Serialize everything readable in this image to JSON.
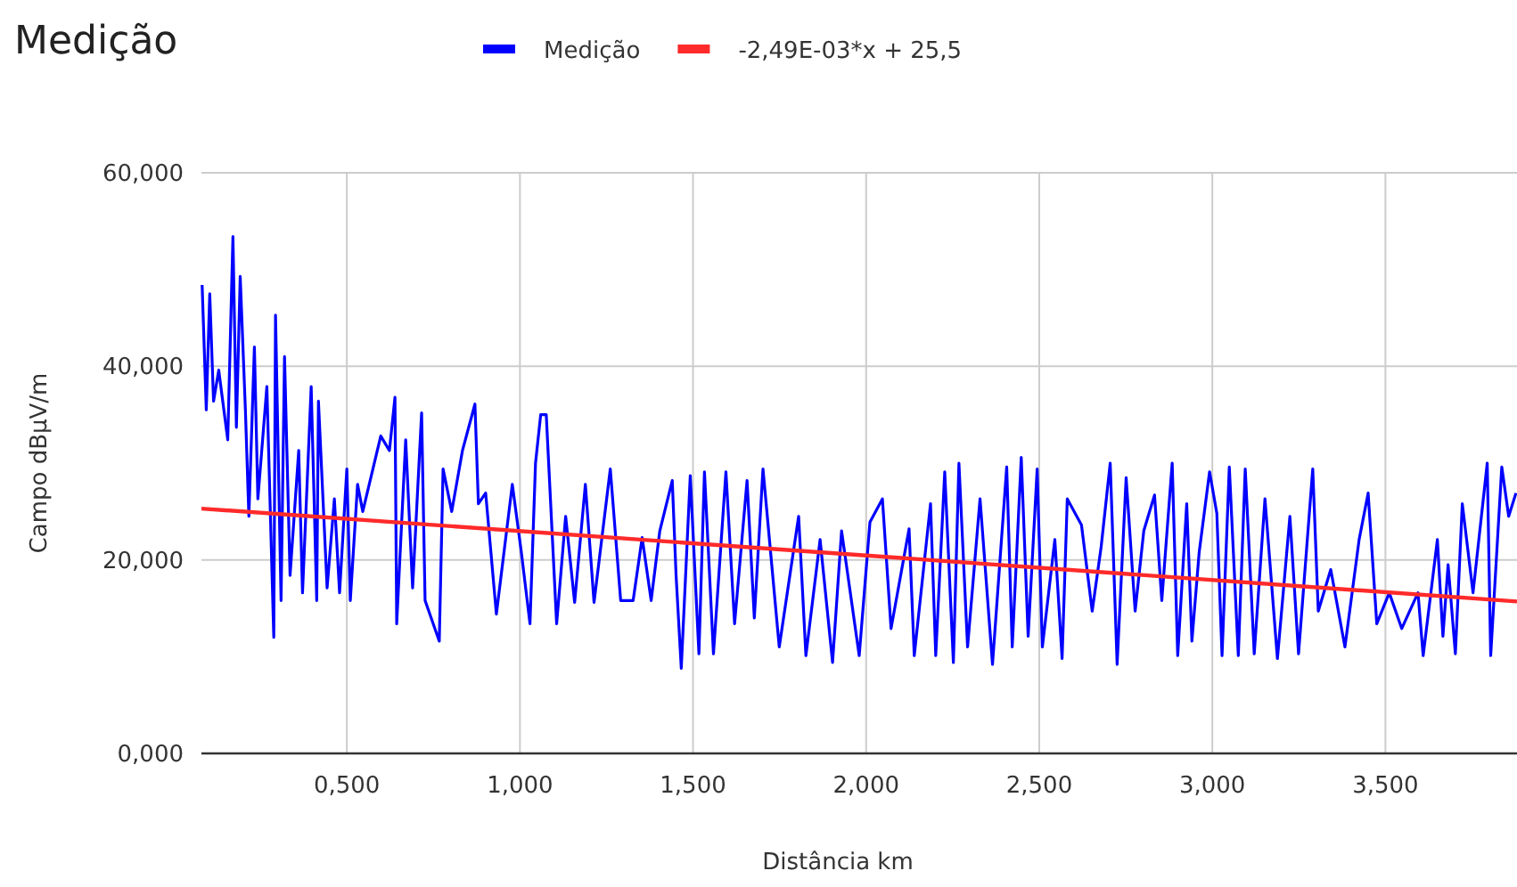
{
  "chart_data": {
    "type": "line",
    "title": "Medição",
    "xlabel": "Distância km",
    "ylabel": "Campo dBµV/m",
    "legend": "top",
    "grid": true,
    "marker": "none",
    "line_style": "solid",
    "xlim": [
      0.08,
      3.88
    ],
    "xticks": [
      {
        "value": 0.5,
        "label": "0,500"
      },
      {
        "value": 1,
        "label": "1,000"
      },
      {
        "value": 1.5,
        "label": "1,500"
      },
      {
        "value": 2,
        "label": "2,000"
      },
      {
        "value": 2.5,
        "label": "2,500"
      },
      {
        "value": 3,
        "label": "3,000"
      },
      {
        "value": 3.5,
        "label": "3,500"
      }
    ],
    "ylim": [
      0,
      60
    ],
    "yticks": [
      {
        "value": 0,
        "label": "0,000"
      },
      {
        "value": 20,
        "label": "20,000"
      },
      {
        "value": 40,
        "label": "40,000"
      },
      {
        "value": 60,
        "label": "60,000"
      }
    ],
    "series": [
      {
        "name": "Medição",
        "color": "#0000ff",
        "x": [
          0.082,
          0.094,
          0.104,
          0.115,
          0.13,
          0.156,
          0.171,
          0.181,
          0.192,
          0.207,
          0.217,
          0.233,
          0.243,
          0.269,
          0.289,
          0.294,
          0.31,
          0.32,
          0.336,
          0.361,
          0.372,
          0.397,
          0.413,
          0.418,
          0.443,
          0.464,
          0.479,
          0.5,
          0.51,
          0.531,
          0.546,
          0.598,
          0.623,
          0.639,
          0.644,
          0.67,
          0.69,
          0.716,
          0.726,
          0.767,
          0.778,
          0.803,
          0.834,
          0.87,
          0.88,
          0.901,
          0.932,
          0.978,
          1.004,
          1.029,
          1.045,
          1.06,
          1.076,
          1.106,
          1.132,
          1.158,
          1.189,
          1.214,
          1.261,
          1.291,
          1.327,
          1.353,
          1.379,
          1.404,
          1.44,
          1.451,
          1.466,
          1.492,
          1.517,
          1.533,
          1.559,
          1.595,
          1.62,
          1.656,
          1.677,
          1.702,
          1.749,
          1.805,
          1.826,
          1.867,
          1.903,
          1.929,
          1.98,
          2.011,
          2.047,
          2.072,
          2.124,
          2.139,
          2.186,
          2.201,
          2.227,
          2.252,
          2.268,
          2.293,
          2.329,
          2.365,
          2.406,
          2.422,
          2.448,
          2.468,
          2.494,
          2.509,
          2.545,
          2.566,
          2.581,
          2.622,
          2.653,
          2.679,
          2.705,
          2.725,
          2.751,
          2.777,
          2.802,
          2.833,
          2.854,
          2.884,
          2.9,
          2.926,
          2.941,
          2.962,
          2.992,
          3.013,
          3.028,
          3.049,
          3.075,
          3.095,
          3.121,
          3.152,
          3.188,
          3.224,
          3.249,
          3.29,
          3.306,
          3.342,
          3.383,
          3.424,
          3.45,
          3.475,
          3.511,
          3.547,
          3.594,
          3.609,
          3.65,
          3.666,
          3.681,
          3.702,
          3.722,
          3.753,
          3.794,
          3.804,
          3.836,
          3.856,
          3.877
        ],
        "values": [
          48.4,
          35.5,
          47.5,
          36.4,
          39.6,
          32.4,
          53.4,
          33.7,
          49.3,
          35.5,
          24.5,
          42,
          26.3,
          37.9,
          12,
          45.3,
          15.8,
          41,
          18.4,
          31.3,
          16.6,
          37.9,
          15.8,
          36.4,
          17.1,
          26.3,
          16.6,
          29.4,
          15.8,
          27.8,
          25,
          32.8,
          31.3,
          36.8,
          13.4,
          32.4,
          17.1,
          35.2,
          15.8,
          11.6,
          29.4,
          25,
          31.3,
          36.1,
          25.8,
          26.9,
          14.4,
          27.8,
          20.8,
          13.4,
          30,
          35,
          35,
          13.4,
          24.5,
          15.6,
          27.8,
          15.6,
          29.4,
          15.8,
          15.8,
          22.3,
          15.8,
          23,
          28.2,
          18.4,
          8.8,
          28.7,
          10.3,
          29.1,
          10.3,
          29.1,
          13.4,
          28.2,
          14,
          29.4,
          11,
          24.5,
          10.1,
          22.1,
          9.4,
          23,
          10.1,
          23.9,
          26.3,
          12.9,
          23.2,
          10.1,
          25.8,
          10.1,
          29.1,
          9.4,
          30,
          11,
          26.3,
          9.2,
          29.6,
          11,
          30.6,
          12.1,
          29.4,
          11,
          22.1,
          9.8,
          26.3,
          23.6,
          14.7,
          21.4,
          30,
          9.2,
          28.5,
          14.7,
          23,
          26.7,
          15.8,
          30,
          10.1,
          25.8,
          11.6,
          20.8,
          29.1,
          24.8,
          10.1,
          29.6,
          10.1,
          29.4,
          10.3,
          26.3,
          9.8,
          24.5,
          10.3,
          29.4,
          14.7,
          19,
          11,
          22.1,
          26.9,
          13.4,
          16.6,
          12.9,
          16.6,
          10.1,
          22.1,
          12.1,
          19.5,
          10.3,
          25.8,
          16.6,
          30,
          10.1,
          29.6,
          24.5,
          26.9
        ]
      },
      {
        "name": "-2,49E-03*x + 25,5",
        "color": "#ff2a2a",
        "x": [
          0.08,
          3.88
        ],
        "values": [
          25.3,
          15.7
        ]
      }
    ]
  }
}
